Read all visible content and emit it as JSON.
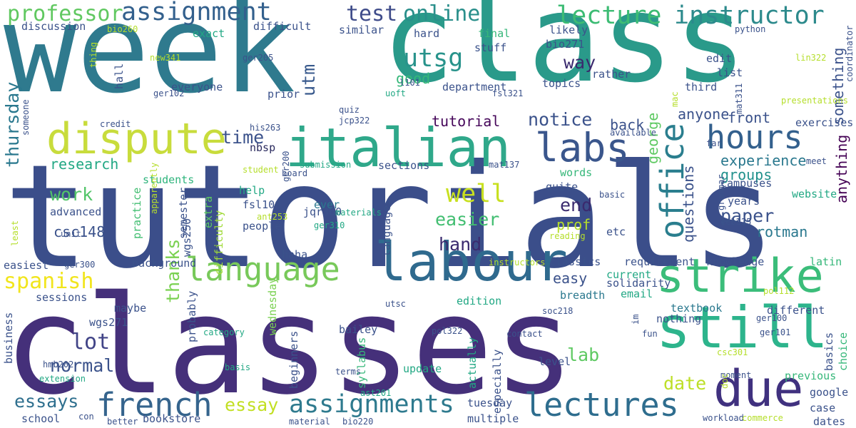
{
  "words": [
    {
      "text": "tutorials",
      "color": "#3b4e8a"
    },
    {
      "text": "classes",
      "color": "#45307a"
    },
    {
      "text": "week",
      "color": "#2f7a8e"
    },
    {
      "text": "class",
      "color": "#2a9a8a"
    },
    {
      "text": "labour",
      "color": "#2f6a8e"
    },
    {
      "text": "still",
      "color": "#2db48c"
    },
    {
      "text": "strike",
      "color": "#3bbd7a"
    },
    {
      "text": "italian",
      "color": "#2fa88a"
    },
    {
      "text": "dispute",
      "color": "#c8dc3c"
    },
    {
      "text": "language",
      "color": "#78c95a"
    },
    {
      "text": "french",
      "color": "#35648d"
    },
    {
      "text": "lectures",
      "color": "#2e6d8e"
    },
    {
      "text": "due",
      "color": "#40317f"
    },
    {
      "text": "hours",
      "color": "#33608d"
    },
    {
      "text": "labs",
      "color": "#3a568c"
    },
    {
      "text": "office",
      "color": "#2a7e8e"
    },
    {
      "text": "assignment",
      "color": "#33608d"
    },
    {
      "text": "assignments",
      "color": "#2e7a8e"
    },
    {
      "text": "lecture",
      "color": "#3dbc74"
    },
    {
      "text": "instructor",
      "color": "#2c8a8c"
    },
    {
      "text": "professor",
      "color": "#60c860"
    },
    {
      "text": "online",
      "color": "#2a8f8b"
    },
    {
      "text": "test",
      "color": "#3f4c8a"
    },
    {
      "text": "utsg",
      "color": "#28938b"
    },
    {
      "text": "way",
      "color": "#3a2a6e"
    },
    {
      "text": "george",
      "color": "#5ec962"
    },
    {
      "text": "spanish",
      "color": "#f1e51d"
    },
    {
      "text": "lot",
      "color": "#414487"
    },
    {
      "text": "work",
      "color": "#52c569"
    },
    {
      "text": "normal",
      "color": "#3b528b"
    },
    {
      "text": "essays",
      "color": "#2e6f8e"
    },
    {
      "text": "essay",
      "color": "#c2df23"
    },
    {
      "text": "well",
      "color": "#c8e020"
    },
    {
      "text": "easier",
      "color": "#42be71"
    },
    {
      "text": "hand",
      "color": "#3a2a6e"
    },
    {
      "text": "end",
      "color": "#3a2a6e"
    },
    {
      "text": "paper",
      "color": "#3b528b"
    },
    {
      "text": "lab",
      "color": "#5ec962"
    },
    {
      "text": "date",
      "color": "#bddf26"
    },
    {
      "text": "thanks",
      "color": "#7ad151"
    },
    {
      "text": "thursday",
      "color": "#2a788e"
    },
    {
      "text": "notice",
      "color": "#3b528b"
    },
    {
      "text": "time",
      "color": "#3b528b"
    },
    {
      "text": "utm",
      "color": "#38598c"
    },
    {
      "text": "good",
      "color": "#35b779"
    },
    {
      "text": "tutorial",
      "color": "#46075a"
    },
    {
      "text": "anyone",
      "color": "#3b528b"
    },
    {
      "text": "something",
      "color": "#3b528b"
    },
    {
      "text": "anything",
      "color": "#440154"
    },
    {
      "text": "questions",
      "color": "#3b528b"
    },
    {
      "text": "experience",
      "color": "#2a788e"
    },
    {
      "text": "groups",
      "color": "#21918c"
    },
    {
      "text": "rotman",
      "color": "#2a788e"
    },
    {
      "text": "front",
      "color": "#3b528b"
    },
    {
      "text": "back",
      "color": "#3b528b"
    },
    {
      "text": "easy",
      "color": "#3b528b"
    },
    {
      "text": "prof",
      "color": "#b5de2b"
    },
    {
      "text": "etc",
      "color": "#3b528b"
    },
    {
      "text": "research",
      "color": "#22a884"
    },
    {
      "text": "students",
      "color": "#2fb47c"
    },
    {
      "text": "semester",
      "color": "#3b528b"
    },
    {
      "text": "practice",
      "color": "#42be71"
    },
    {
      "text": "extra",
      "color": "#5ec962"
    },
    {
      "text": "difficulty",
      "color": "#a0da39"
    },
    {
      "text": "help",
      "color": "#22a884"
    },
    {
      "text": "fsl100",
      "color": "#3b528b"
    },
    {
      "text": "people",
      "color": "#3b528b"
    },
    {
      "text": "ever",
      "color": "#2a788e"
    },
    {
      "text": "jqr360",
      "color": "#3b528b"
    },
    {
      "text": "languages",
      "color": "#3b528b"
    },
    {
      "text": "words",
      "color": "#35b779"
    },
    {
      "text": "quite",
      "color": "#3b528b"
    },
    {
      "text": "csc148",
      "color": "#3b528b"
    },
    {
      "text": "advanced",
      "color": "#3b528b"
    },
    {
      "text": "nbsp",
      "color": "#2a2a5e"
    },
    {
      "text": "everyone",
      "color": "#3b528b"
    },
    {
      "text": "maybe",
      "color": "#3b528b"
    },
    {
      "text": "probably",
      "color": "#3b528b"
    },
    {
      "text": "wgs271",
      "color": "#3b528b"
    },
    {
      "text": "wgs250",
      "color": "#3b528b"
    },
    {
      "text": "breadth",
      "color": "#2a788e"
    },
    {
      "text": "level",
      "color": "#3b528b"
    },
    {
      "text": "textbook",
      "color": "#2a788e"
    },
    {
      "text": "nothing",
      "color": "#3b528b"
    },
    {
      "text": "email",
      "color": "#22a884"
    },
    {
      "text": "classics",
      "color": "#3b528b"
    },
    {
      "text": "requirement",
      "color": "#3b528b"
    },
    {
      "text": "knowledge",
      "color": "#3b528b"
    },
    {
      "text": "current",
      "color": "#22a884"
    },
    {
      "text": "solidarity",
      "color": "#3b528b"
    },
    {
      "text": "latin",
      "color": "#35b779"
    },
    {
      "text": "easiest",
      "color": "#3b528b"
    },
    {
      "text": "haha",
      "color": "#3b528b"
    },
    {
      "text": "background",
      "color": "#3b528b"
    },
    {
      "text": "sessions",
      "color": "#3b528b"
    },
    {
      "text": "business",
      "color": "#3b528b"
    },
    {
      "text": "school",
      "color": "#3b528b"
    },
    {
      "text": "beginners",
      "color": "#3b528b"
    },
    {
      "text": "syllabus",
      "color": "#35b779"
    },
    {
      "text": "wednesday",
      "color": "#7ad151"
    },
    {
      "text": "tuesday",
      "color": "#3b528b"
    },
    {
      "text": "multiple",
      "color": "#3b528b"
    },
    {
      "text": "especially",
      "color": "#3b528b"
    },
    {
      "text": "actually",
      "color": "#22a884"
    },
    {
      "text": "edition",
      "color": "#22a884"
    },
    {
      "text": "update",
      "color": "#22a884"
    },
    {
      "text": "previous",
      "color": "#35b779"
    },
    {
      "text": "different",
      "color": "#3b528b"
    },
    {
      "text": "case",
      "color": "#3b528b"
    },
    {
      "text": "google",
      "color": "#3b528b"
    },
    {
      "text": "dates",
      "color": "#3b528b"
    },
    {
      "text": "basics",
      "color": "#3b528b"
    },
    {
      "text": "choice",
      "color": "#35b779"
    },
    {
      "text": "website",
      "color": "#22a884"
    },
    {
      "text": "campuses",
      "color": "#3b528b"
    },
    {
      "text": "years",
      "color": "#3b528b"
    },
    {
      "text": "final",
      "color": "#35b779"
    },
    {
      "text": "stuff",
      "color": "#3b528b"
    },
    {
      "text": "department",
      "color": "#3b528b"
    },
    {
      "text": "topics",
      "color": "#3b528b"
    },
    {
      "text": "third",
      "color": "#3b528b"
    },
    {
      "text": "edit",
      "color": "#3b528b"
    },
    {
      "text": "list",
      "color": "#3b528b"
    },
    {
      "text": "rather",
      "color": "#3b528b"
    },
    {
      "text": "likely",
      "color": "#3b528b"
    },
    {
      "text": "bio271",
      "color": "#3b528b"
    },
    {
      "text": "similar",
      "color": "#3b528b"
    },
    {
      "text": "hard",
      "color": "#3b528b"
    },
    {
      "text": "exact",
      "color": "#22a884"
    },
    {
      "text": "difficult",
      "color": "#3b528b"
    },
    {
      "text": "discussion",
      "color": "#3b528b"
    },
    {
      "text": "bio260",
      "color": "#b5de2b"
    },
    {
      "text": "python",
      "color": "#3b528b"
    },
    {
      "text": "coordinator",
      "color": "#3b528b"
    },
    {
      "text": "lin322",
      "color": "#b5de2b"
    },
    {
      "text": "new341",
      "color": "#b5de2b"
    },
    {
      "text": "ger205",
      "color": "#3b528b"
    },
    {
      "text": "l101",
      "color": "#3b528b"
    },
    {
      "text": "uoft",
      "color": "#22a884"
    },
    {
      "text": "fsl321",
      "color": "#3b528b"
    },
    {
      "text": "prior",
      "color": "#3b528b"
    },
    {
      "text": "ger102",
      "color": "#3b528b"
    },
    {
      "text": "hall",
      "color": "#3b528b"
    },
    {
      "text": "thing",
      "color": "#b5de2b"
    },
    {
      "text": "someone",
      "color": "#3b528b"
    },
    {
      "text": "credit",
      "color": "#3b528b"
    },
    {
      "text": "his263",
      "color": "#3b528b"
    },
    {
      "text": "quiz",
      "color": "#3b528b"
    },
    {
      "text": "jcp322",
      "color": "#3b528b"
    },
    {
      "text": "mac",
      "color": "#b5de2b"
    },
    {
      "text": "mat311",
      "color": "#3b528b"
    },
    {
      "text": "presentations",
      "color": "#b5de2b"
    },
    {
      "text": "exercises",
      "color": "#3b528b"
    },
    {
      "text": "available",
      "color": "#3b528b"
    },
    {
      "text": "far",
      "color": "#3b528b"
    },
    {
      "text": "meet",
      "color": "#3b528b"
    },
    {
      "text": "mat137",
      "color": "#3b528b"
    },
    {
      "text": "sections",
      "color": "#3b528b"
    },
    {
      "text": "submission",
      "color": "#22a884"
    },
    {
      "text": "board",
      "color": "#3b528b"
    },
    {
      "text": "student",
      "color": "#b5de2b"
    },
    {
      "text": "apparently",
      "color": "#b5de2b"
    },
    {
      "text": "ger200",
      "color": "#3b528b"
    },
    {
      "text": "ant253",
      "color": "#b5de2b"
    },
    {
      "text": "materials",
      "color": "#22a884"
    },
    {
      "text": "ger310",
      "color": "#22a884"
    },
    {
      "text": "reading",
      "color": "#b5de2b"
    },
    {
      "text": "basic",
      "color": "#3b528b"
    },
    {
      "text": "grammar",
      "color": "#3b528b"
    },
    {
      "text": "eeb225",
      "color": "#3b528b"
    },
    {
      "text": "least",
      "color": "#b5de2b"
    },
    {
      "text": "unit",
      "color": "#3b528b"
    },
    {
      "text": "ger300",
      "color": "#3b528b"
    },
    {
      "text": "instructors",
      "color": "#b5de2b"
    },
    {
      "text": "pol112",
      "color": "#b5de2b"
    },
    {
      "text": "soc218",
      "color": "#3b528b"
    },
    {
      "text": "ger100",
      "color": "#3b528b"
    },
    {
      "text": "ger101",
      "color": "#3b528b"
    },
    {
      "text": "im",
      "color": "#3b528b"
    },
    {
      "text": "fun",
      "color": "#3b528b"
    },
    {
      "text": "csc301",
      "color": "#b5de2b"
    },
    {
      "text": "contact",
      "color": "#3b528b"
    },
    {
      "text": "pol322",
      "color": "#3b528b"
    },
    {
      "text": "category",
      "color": "#22a884"
    },
    {
      "text": "bailey",
      "color": "#3b528b"
    },
    {
      "text": "utsc",
      "color": "#3b528b"
    },
    {
      "text": "hmb202",
      "color": "#3b528b"
    },
    {
      "text": "extension",
      "color": "#22a884"
    },
    {
      "text": "basis",
      "color": "#22a884"
    },
    {
      "text": "terms",
      "color": "#3b528b"
    },
    {
      "text": "ast201",
      "color": "#22a884"
    },
    {
      "text": "moment",
      "color": "#3b528b"
    },
    {
      "text": "doc",
      "color": "#b5de2b"
    },
    {
      "text": "workload",
      "color": "#3b528b"
    },
    {
      "text": "commerce",
      "color": "#b5de2b"
    },
    {
      "text": "con",
      "color": "#3b528b"
    },
    {
      "text": "better",
      "color": "#3b528b"
    },
    {
      "text": "bookstore",
      "color": "#3b528b"
    },
    {
      "text": "material",
      "color": "#3b528b"
    },
    {
      "text": "bio220",
      "color": "#3b528b"
    }
  ]
}
